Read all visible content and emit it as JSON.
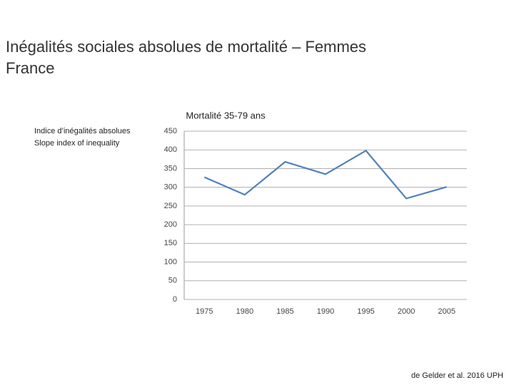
{
  "slide": {
    "title": [
      "Inégalités sociales absolues de mortalité – Femmes",
      "France"
    ],
    "source": "de Gelder et al. 2016 UPH"
  },
  "chart_data": {
    "type": "line",
    "title": "Mortalité 35-79 ans",
    "ylabel": [
      "Indice d’inégalités absolues",
      "Slope index of inequality"
    ],
    "categories": [
      "1975",
      "1980",
      "1985",
      "1990",
      "1995",
      "2000",
      "2005"
    ],
    "series": [
      {
        "name": "Slope index of inequality",
        "color": "#4f81bd",
        "values": [
          327,
          280,
          368,
          335,
          398,
          270,
          301
        ]
      }
    ],
    "ylim": [
      0,
      450
    ],
    "yticks": [
      0,
      50,
      100,
      150,
      200,
      250,
      300,
      350,
      400,
      450
    ],
    "grid": true
  }
}
